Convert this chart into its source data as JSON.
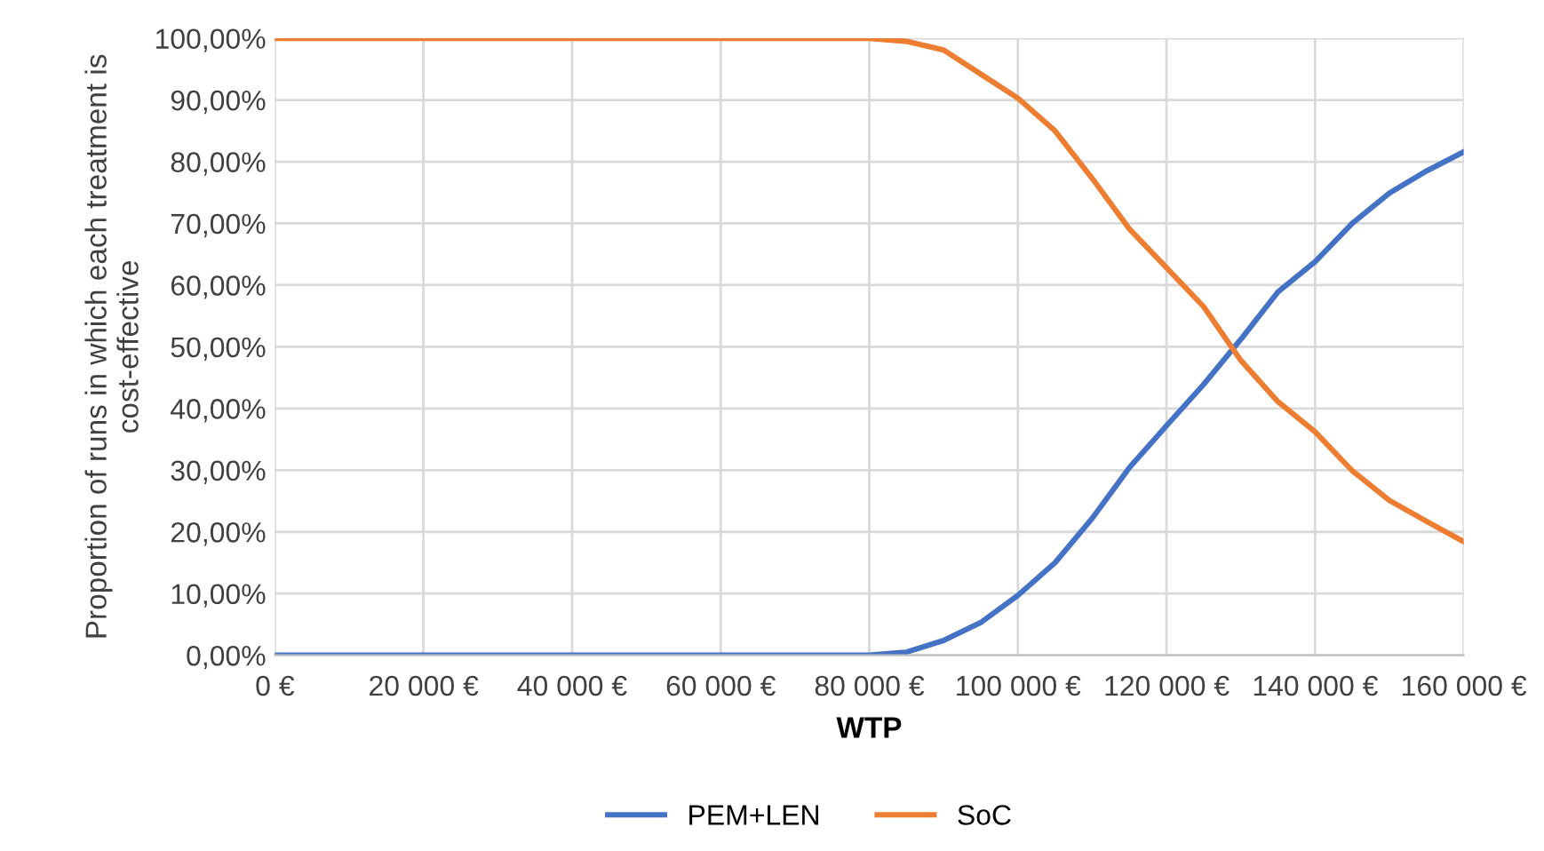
{
  "chart_data": {
    "type": "line",
    "xlabel": "WTP",
    "ylabel": "Proportion of runs in which each treatment is cost-effective",
    "x": [
      0,
      5000,
      10000,
      15000,
      20000,
      25000,
      30000,
      35000,
      40000,
      45000,
      50000,
      55000,
      60000,
      65000,
      70000,
      75000,
      80000,
      85000,
      90000,
      95000,
      100000,
      105000,
      110000,
      115000,
      120000,
      125000,
      130000,
      135000,
      140000,
      145000,
      150000,
      155000,
      160000
    ],
    "series": [
      {
        "name": "PEM+LEN",
        "color": "#4472c4",
        "values": [
          0,
          0,
          0,
          0,
          0,
          0,
          0,
          0,
          0,
          0,
          0,
          0,
          0,
          0,
          0,
          0,
          0,
          0.5,
          2.4,
          5.3,
          9.7,
          15,
          22.2,
          30.4,
          37.2,
          43.9,
          51.2,
          58.9,
          63.8,
          70,
          74.9,
          78.5,
          81.6
        ]
      },
      {
        "name": "SoC",
        "color": "#ed7d31",
        "values": [
          100,
          100,
          100,
          100,
          100,
          100,
          100,
          100,
          100,
          100,
          100,
          100,
          100,
          100,
          100,
          100,
          100,
          99.5,
          98.1,
          94.2,
          90.3,
          85,
          77.3,
          69.1,
          62.8,
          56.5,
          47.8,
          41.1,
          36.2,
          29.9,
          25.1,
          21.7,
          18.4
        ]
      }
    ],
    "xlim": [
      0,
      160000
    ],
    "xticks": [
      {
        "value": 0,
        "label": "0 €"
      },
      {
        "value": 20000,
        "label": "20 000 €"
      },
      {
        "value": 40000,
        "label": "40 000 €"
      },
      {
        "value": 60000,
        "label": "60 000 €"
      },
      {
        "value": 80000,
        "label": "80 000 €"
      },
      {
        "value": 100000,
        "label": "100 000 €"
      },
      {
        "value": 120000,
        "label": "120 000 €"
      },
      {
        "value": 140000,
        "label": "140 000 €"
      },
      {
        "value": 160000,
        "label": "160 000 €"
      }
    ],
    "ylim": [
      0,
      100
    ],
    "yticks": [
      {
        "value": 0,
        "label": "0,00%"
      },
      {
        "value": 10,
        "label": "10,00%"
      },
      {
        "value": 20,
        "label": "20,00%"
      },
      {
        "value": 30,
        "label": "30,00%"
      },
      {
        "value": 40,
        "label": "40,00%"
      },
      {
        "value": 50,
        "label": "50,00%"
      },
      {
        "value": 60,
        "label": "60,00%"
      },
      {
        "value": 70,
        "label": "70,00%"
      },
      {
        "value": 80,
        "label": "80,00%"
      },
      {
        "value": 90,
        "label": "90,00%"
      },
      {
        "value": 100,
        "label": "100,00%"
      }
    ],
    "grid": true,
    "legend": "bottom",
    "marker": "none",
    "line_style": "solid"
  }
}
